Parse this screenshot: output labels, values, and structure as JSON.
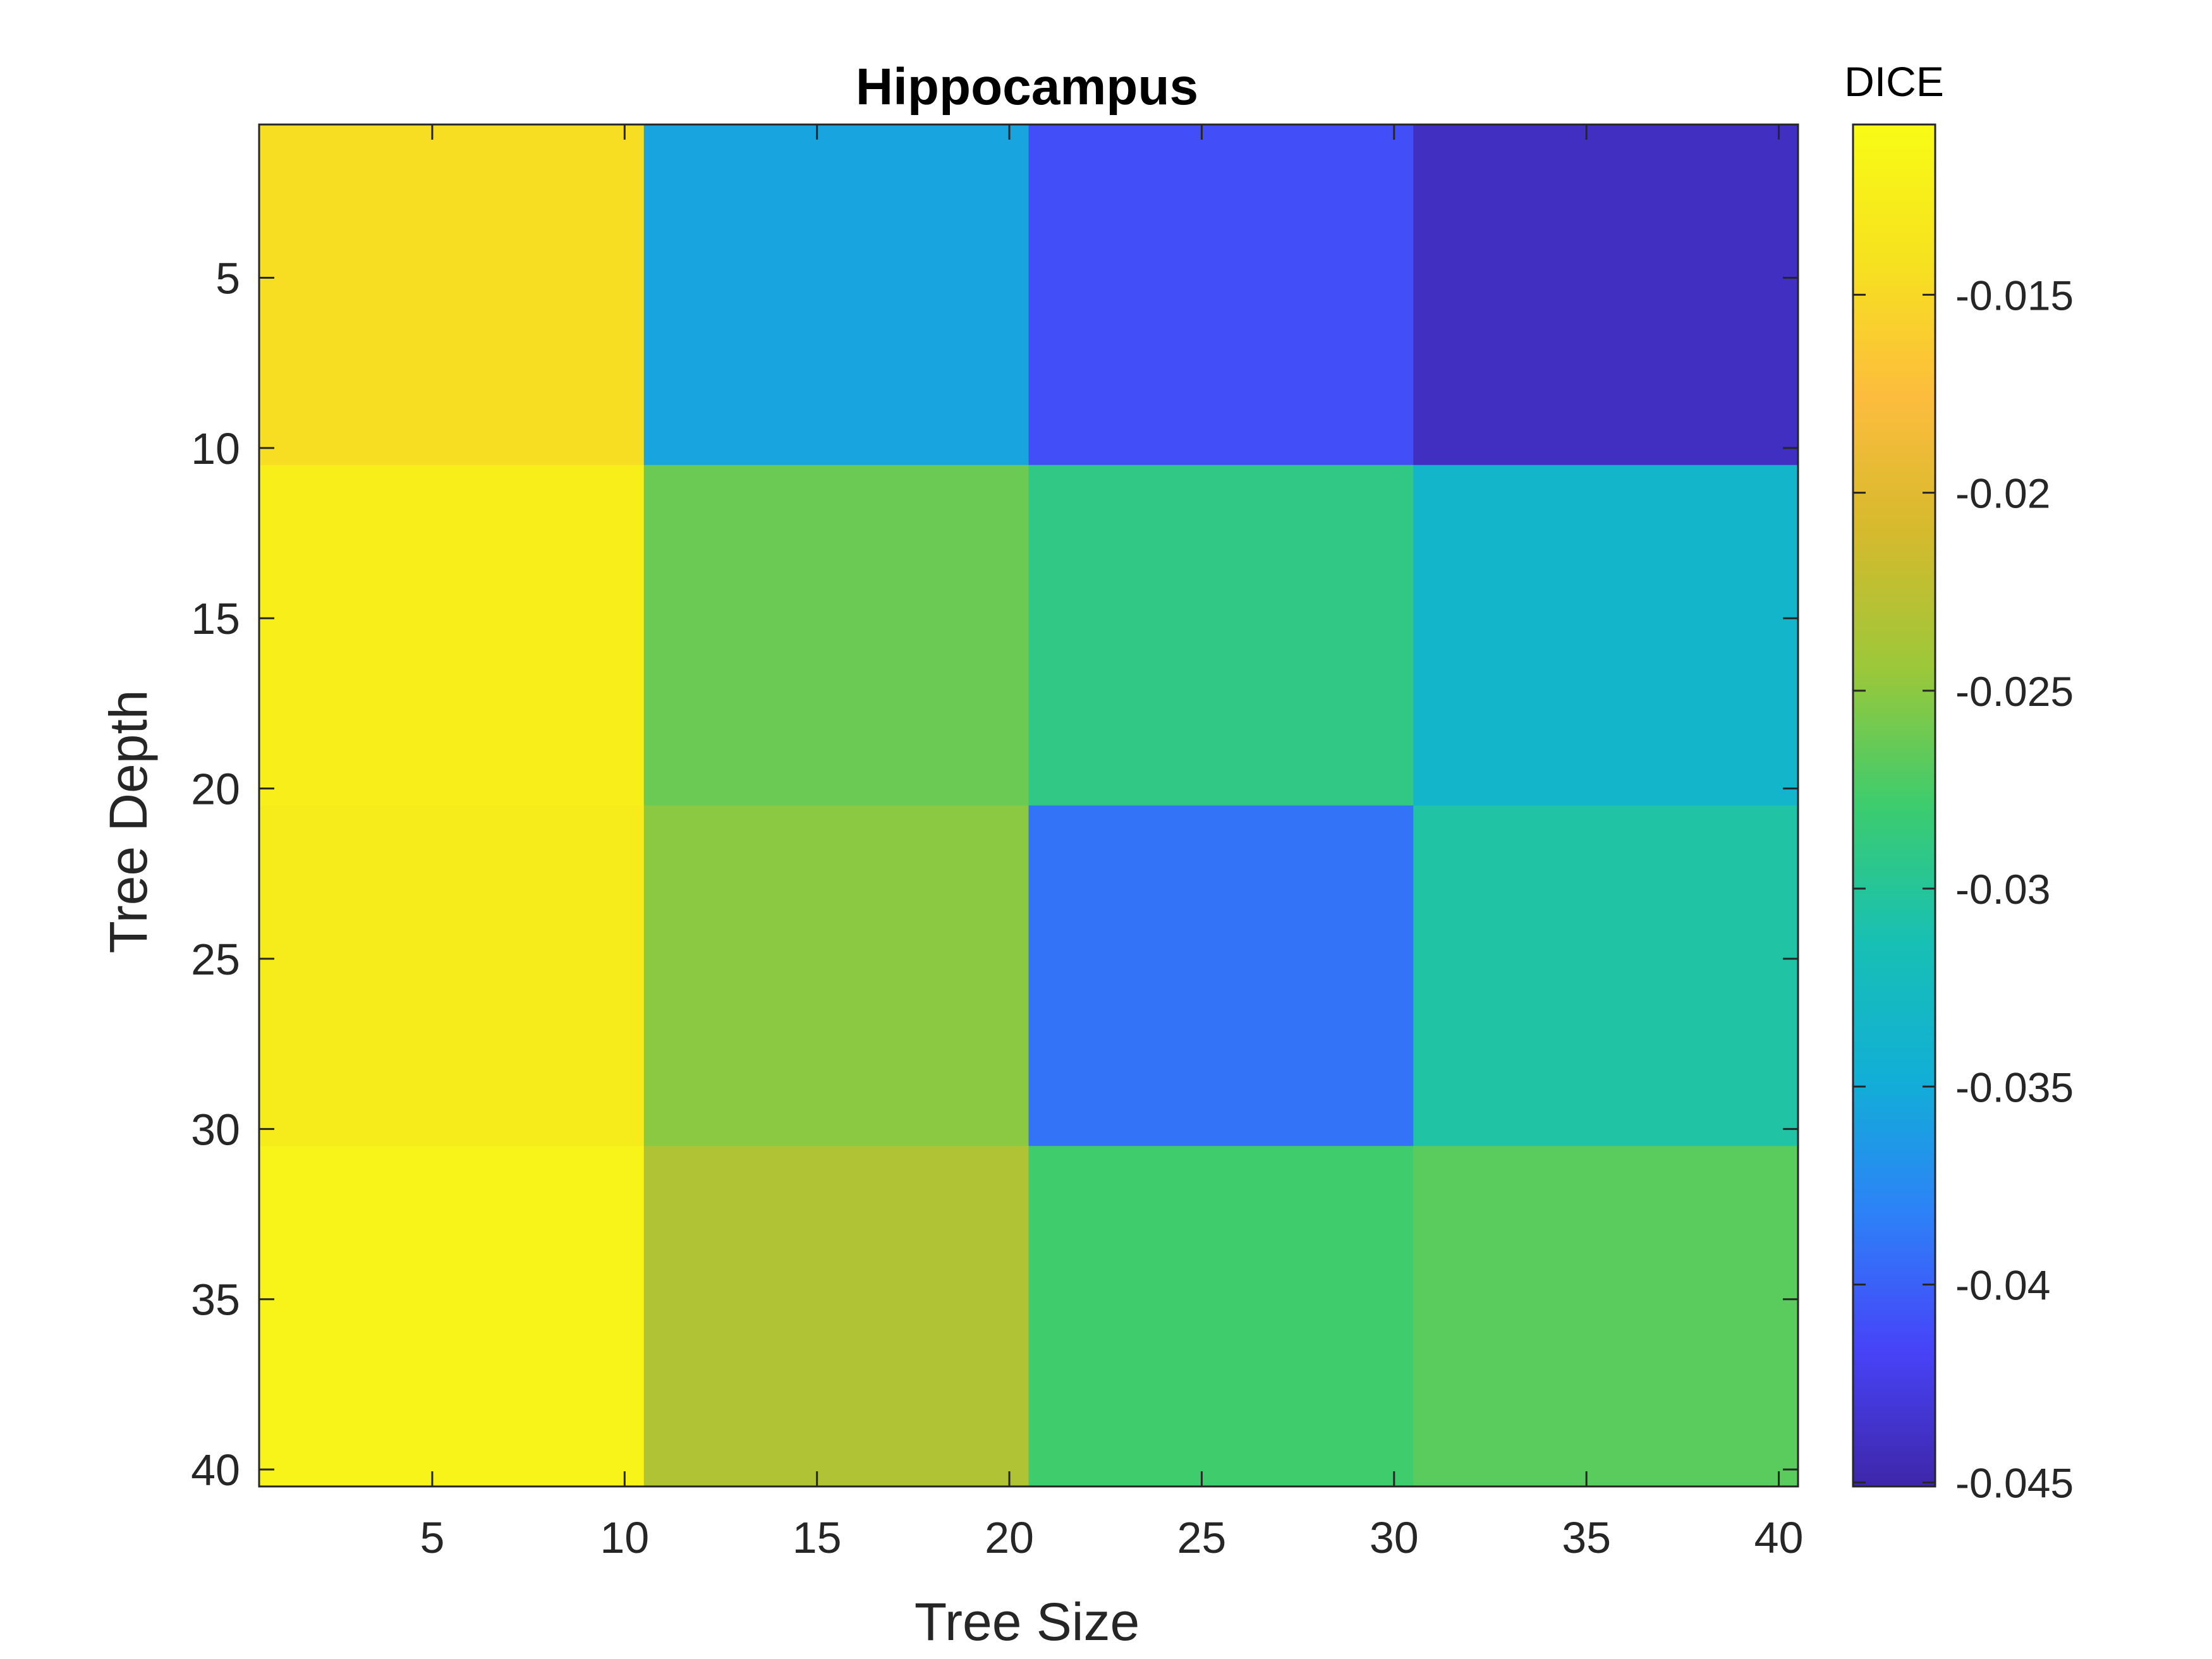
{
  "chart_data": {
    "type": "heatmap",
    "title": "Hippocampus",
    "xlabel": "Tree Size",
    "ylabel": "Tree Depth",
    "xlim": [
      0.5,
      40.5
    ],
    "ylim": [
      0.5,
      40.5
    ],
    "y_reversed": true,
    "x_ticks": [
      "5",
      "10",
      "15",
      "20",
      "25",
      "30",
      "35",
      "40"
    ],
    "y_ticks": [
      "5",
      "10",
      "15",
      "20",
      "25",
      "30",
      "35",
      "40"
    ],
    "columns": [
      {
        "x_from": 0.5,
        "x_to": 10.5
      },
      {
        "x_from": 10.5,
        "x_to": 20.5
      },
      {
        "x_from": 20.5,
        "x_to": 30.5
      },
      {
        "x_from": 30.5,
        "x_to": 40.5
      }
    ],
    "rows": [
      {
        "y_from": 0.5,
        "y_to": 10.5
      },
      {
        "y_from": 10.5,
        "y_to": 20.5
      },
      {
        "y_from": 20.5,
        "y_to": 30.5
      },
      {
        "y_from": 30.5,
        "y_to": 40.5
      }
    ],
    "values": [
      [
        -0.0145,
        -0.0356,
        -0.041,
        -0.044
      ],
      [
        -0.0125,
        -0.0262,
        -0.029,
        -0.0336
      ],
      [
        -0.0128,
        -0.025,
        -0.039,
        -0.0305
      ],
      [
        -0.0118,
        -0.0232,
        -0.0278,
        -0.0268
      ]
    ],
    "colorbar": {
      "label": "DICE",
      "clim": [
        -0.0451,
        -0.0107
      ],
      "ticks": [
        "-0.015",
        "-0.02",
        "-0.025",
        "-0.03",
        "-0.035",
        "-0.04",
        "-0.045"
      ],
      "tick_values": [
        -0.015,
        -0.02,
        -0.025,
        -0.03,
        -0.035,
        -0.04,
        -0.045
      ],
      "colormap": "parula",
      "colormap_stops": [
        "#3e26a8",
        "#4743f8",
        "#2d81f8",
        "#11afd6",
        "#17c0b4",
        "#3ccc6e",
        "#9bc83a",
        "#d5ba2d",
        "#fdbc3d",
        "#f6e21f",
        "#f9fb15"
      ]
    },
    "grid": false,
    "legend": "colorbar-right"
  }
}
